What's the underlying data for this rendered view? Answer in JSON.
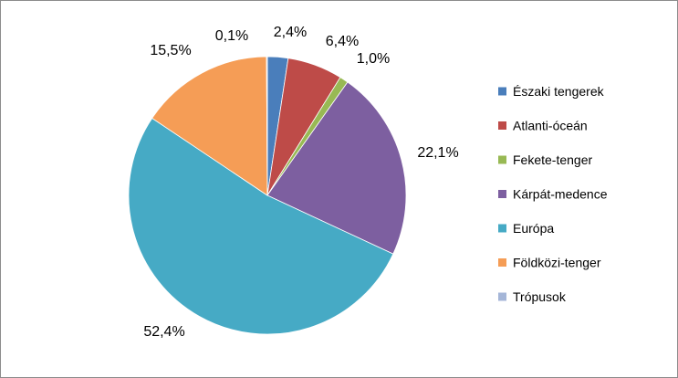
{
  "chart_data": {
    "type": "pie",
    "start_angle_deg": 0,
    "direction": "clockwise",
    "legend_position": "right",
    "slices": [
      {
        "name": "Északi tengerek",
        "value": 2.4,
        "label": "2,4%",
        "color": "#4a7ebb"
      },
      {
        "name": "Atlanti-óceán",
        "value": 6.4,
        "label": "6,4%",
        "color": "#be4b48"
      },
      {
        "name": "Fekete-tenger",
        "value": 1.0,
        "label": "1,0%",
        "color": "#98b954"
      },
      {
        "name": "Kárpát-medence",
        "value": 22.1,
        "label": "22,1%",
        "color": "#7d5fa0"
      },
      {
        "name": "Európa",
        "value": 52.4,
        "label": "52,4%",
        "color": "#46aac5"
      },
      {
        "name": "Földközi-tenger",
        "value": 15.5,
        "label": "15,5%",
        "color": "#f59d56"
      },
      {
        "name": "Trópusok",
        "value": 0.1,
        "label": "0,1%",
        "color": "#a5b6d8"
      }
    ]
  }
}
